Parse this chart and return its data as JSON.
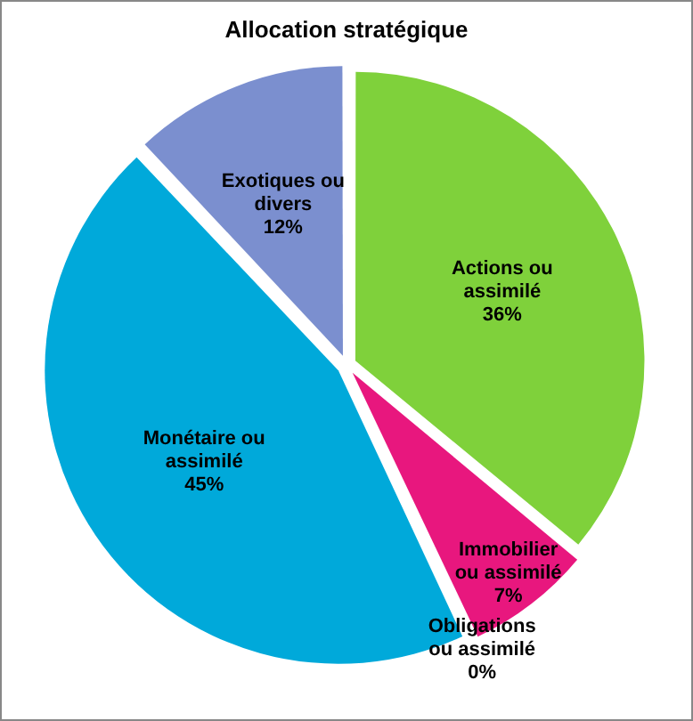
{
  "chart_data": {
    "type": "pie",
    "title": "Allocation stratégique",
    "categories": [
      "Actions ou assimilé",
      "Immobilier ou assimilé",
      "Obligations ou assimilé",
      "Monétaire ou assimilé",
      "Exotiques ou divers"
    ],
    "values": [
      36,
      7,
      0,
      45,
      12
    ],
    "value_labels": [
      "36%",
      "7%",
      "0%",
      "45%",
      "12%"
    ],
    "colors": [
      "#7fd13b",
      "#e8177e",
      "#f79646",
      "#00a9da",
      "#7b8fcf"
    ],
    "legend": false
  }
}
